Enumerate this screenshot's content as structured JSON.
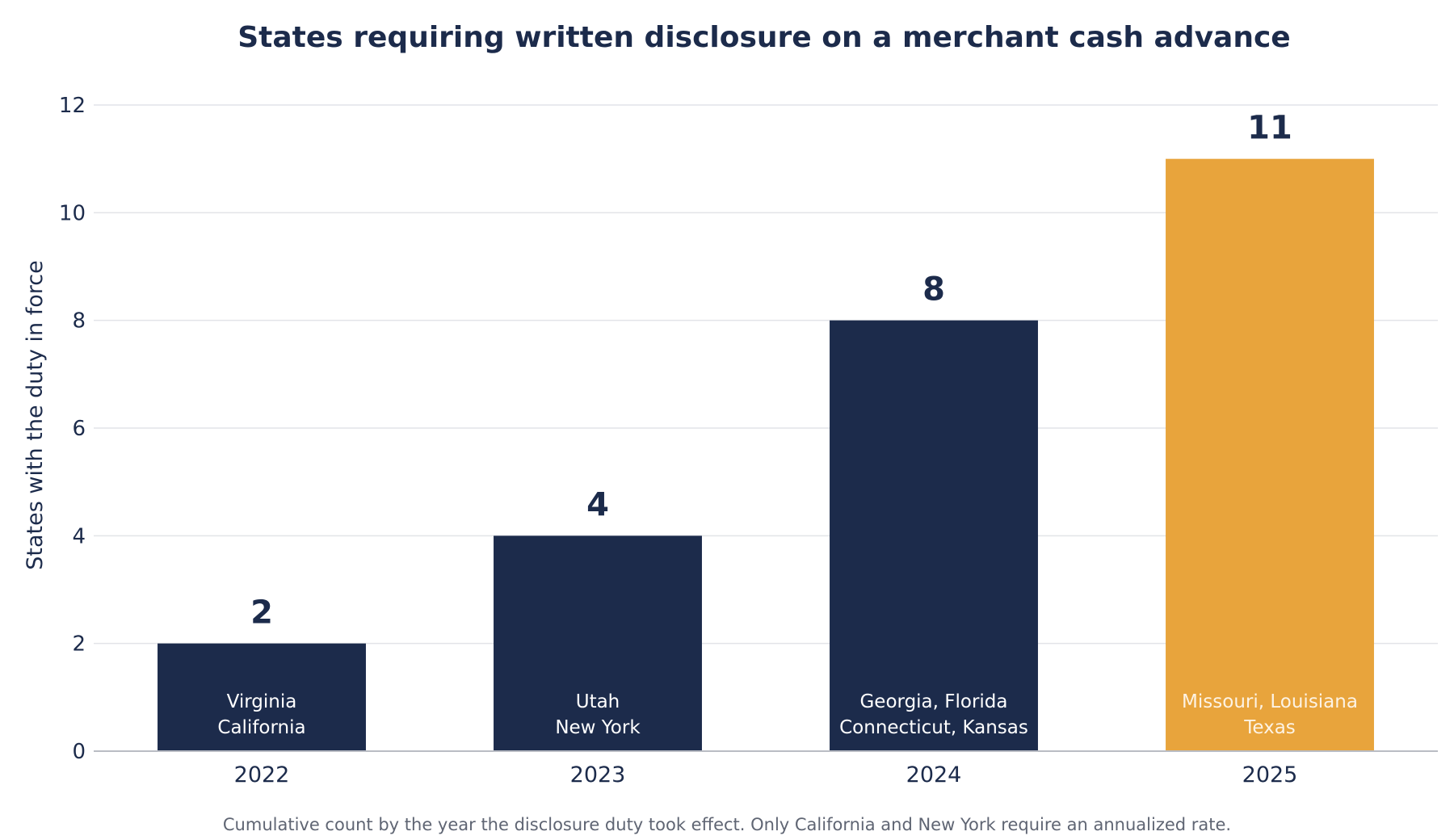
{
  "chart_data": {
    "type": "bar",
    "title": "States requiring written disclosure on a merchant cash advance",
    "xlabel": "",
    "ylabel": "States with the duty in force",
    "caption": "Cumulative count by the year the disclosure duty took effect. Only California and New York require an annualized rate.",
    "categories": [
      "2022",
      "2023",
      "2024",
      "2025"
    ],
    "values": [
      2,
      4,
      8,
      11
    ],
    "value_labels": [
      "2",
      "4",
      "8",
      "11"
    ],
    "bar_annotations": [
      [
        "Virginia",
        "California"
      ],
      [
        "Utah",
        "New York"
      ],
      [
        "Georgia, Florida",
        "Connecticut, Kansas"
      ],
      [
        "Missouri, Louisiana",
        "Texas"
      ]
    ],
    "ylim": [
      0,
      12
    ],
    "yticks": [
      0,
      2,
      4,
      6,
      8,
      10,
      12
    ],
    "grid": "horizontal",
    "legend": "none",
    "colors": {
      "bar": "#1c2b4b",
      "highlight_bar": "#e8a43c",
      "highlight_index": 3,
      "text": "#1c2b4b",
      "grid": "#e2e4e8",
      "axis": "#b9bcc4",
      "caption": "#5f6573",
      "bar_text": "#ffffff"
    }
  }
}
